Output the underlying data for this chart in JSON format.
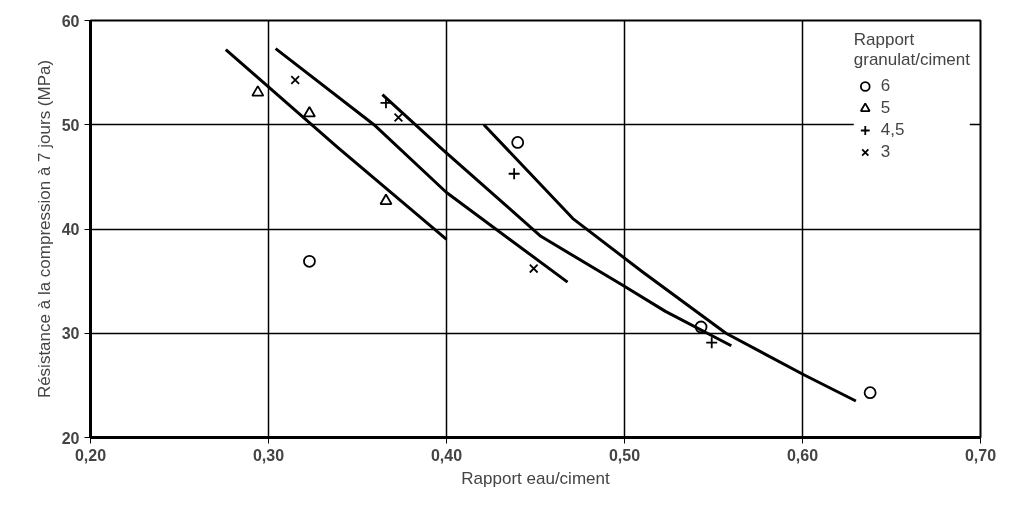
{
  "chart_data": {
    "type": "scatter",
    "xlabel": "Rapport eau/ciment",
    "ylabel": "Résistance à la compression à 7 jours (MPa)",
    "legend_title": "Rapport\ngranulat/ciment",
    "xlim": [
      0.2,
      0.7
    ],
    "ylim": [
      20,
      60
    ],
    "xticks": [
      {
        "value": 0.2,
        "label": "0,20"
      },
      {
        "value": 0.3,
        "label": "0,30"
      },
      {
        "value": 0.4,
        "label": "0,40"
      },
      {
        "value": 0.5,
        "label": "0,50"
      },
      {
        "value": 0.6,
        "label": "0,60"
      },
      {
        "value": 0.7,
        "label": "0,70"
      }
    ],
    "yticks": [
      20,
      30,
      40,
      50,
      60
    ],
    "grid": true,
    "legend": "top right",
    "series": [
      {
        "name": "6",
        "type": "scatter",
        "marker": "circle",
        "color": "#000000",
        "x": [
          0.323,
          0.44,
          0.543,
          0.638
        ],
        "values": [
          36.9,
          48.3,
          30.6,
          24.3
        ]
      },
      {
        "name": "5",
        "type": "scatter",
        "marker": "triangle",
        "color": "#000000",
        "x": [
          0.294,
          0.323,
          0.366
        ],
        "values": [
          53.1,
          51.1,
          42.7
        ]
      },
      {
        "name": "4,5",
        "type": "scatter",
        "marker": "cross",
        "color": "#000000",
        "x": [
          0.366,
          0.438,
          0.549
        ],
        "values": [
          52.1,
          45.3,
          29.1
        ]
      },
      {
        "name": "3",
        "type": "scatter",
        "marker": "x",
        "color": "#000000",
        "x": [
          0.315,
          0.373,
          0.449
        ],
        "values": [
          54.3,
          50.7,
          36.2
        ]
      },
      {
        "type": "line",
        "line_style": "solid",
        "color": "#000000",
        "x": [
          0.276,
          0.339,
          0.4
        ],
        "values": [
          57.2,
          47.8,
          39.0
        ]
      },
      {
        "type": "line",
        "line_style": "solid",
        "color": "#000000",
        "x": [
          0.304,
          0.36,
          0.4,
          0.468
        ],
        "values": [
          57.3,
          49.9,
          43.5,
          34.9
        ]
      },
      {
        "type": "line",
        "line_style": "solid",
        "color": "#000000",
        "x": [
          0.364,
          0.398,
          0.453,
          0.499,
          0.523,
          0.56
        ],
        "values": [
          52.9,
          47.6,
          39.3,
          34.6,
          32.1,
          28.8
        ]
      },
      {
        "type": "line",
        "line_style": "solid",
        "color": "#000000",
        "x": [
          0.421,
          0.471,
          0.51,
          0.557,
          0.601,
          0.63
        ],
        "values": [
          50.0,
          41.0,
          35.9,
          30.0,
          26.0,
          23.5
        ]
      }
    ]
  }
}
